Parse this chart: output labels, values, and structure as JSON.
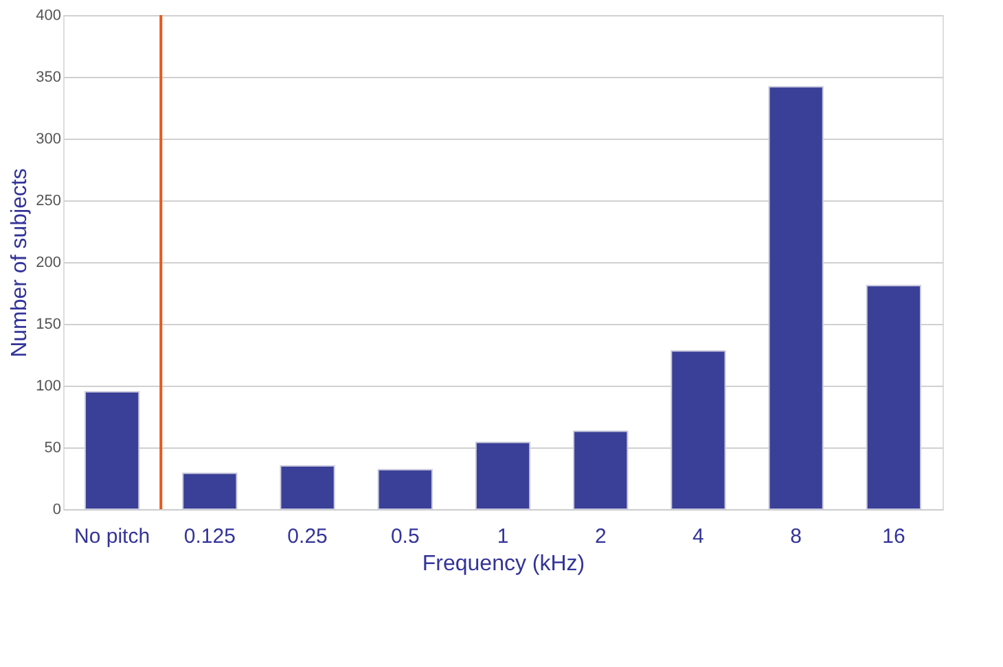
{
  "chart_data": {
    "type": "bar",
    "xlabel": "Frequency (kHz)",
    "ylabel": "Number of subjects",
    "categories": [
      "No pitch",
      "0.125",
      "0.25",
      "0.5",
      "1",
      "2",
      "4",
      "8",
      "16"
    ],
    "values": [
      95,
      29,
      35,
      32,
      54,
      63,
      128,
      342,
      181
    ],
    "color": "#3a3f98",
    "ylim": [
      0,
      400
    ],
    "yticks": [
      0,
      50,
      100,
      150,
      200,
      250,
      300,
      350,
      400
    ],
    "grid": "y",
    "ref_lines": [
      {
        "axis": "x",
        "value": "0.125",
        "color": "#e8591a"
      }
    ]
  }
}
